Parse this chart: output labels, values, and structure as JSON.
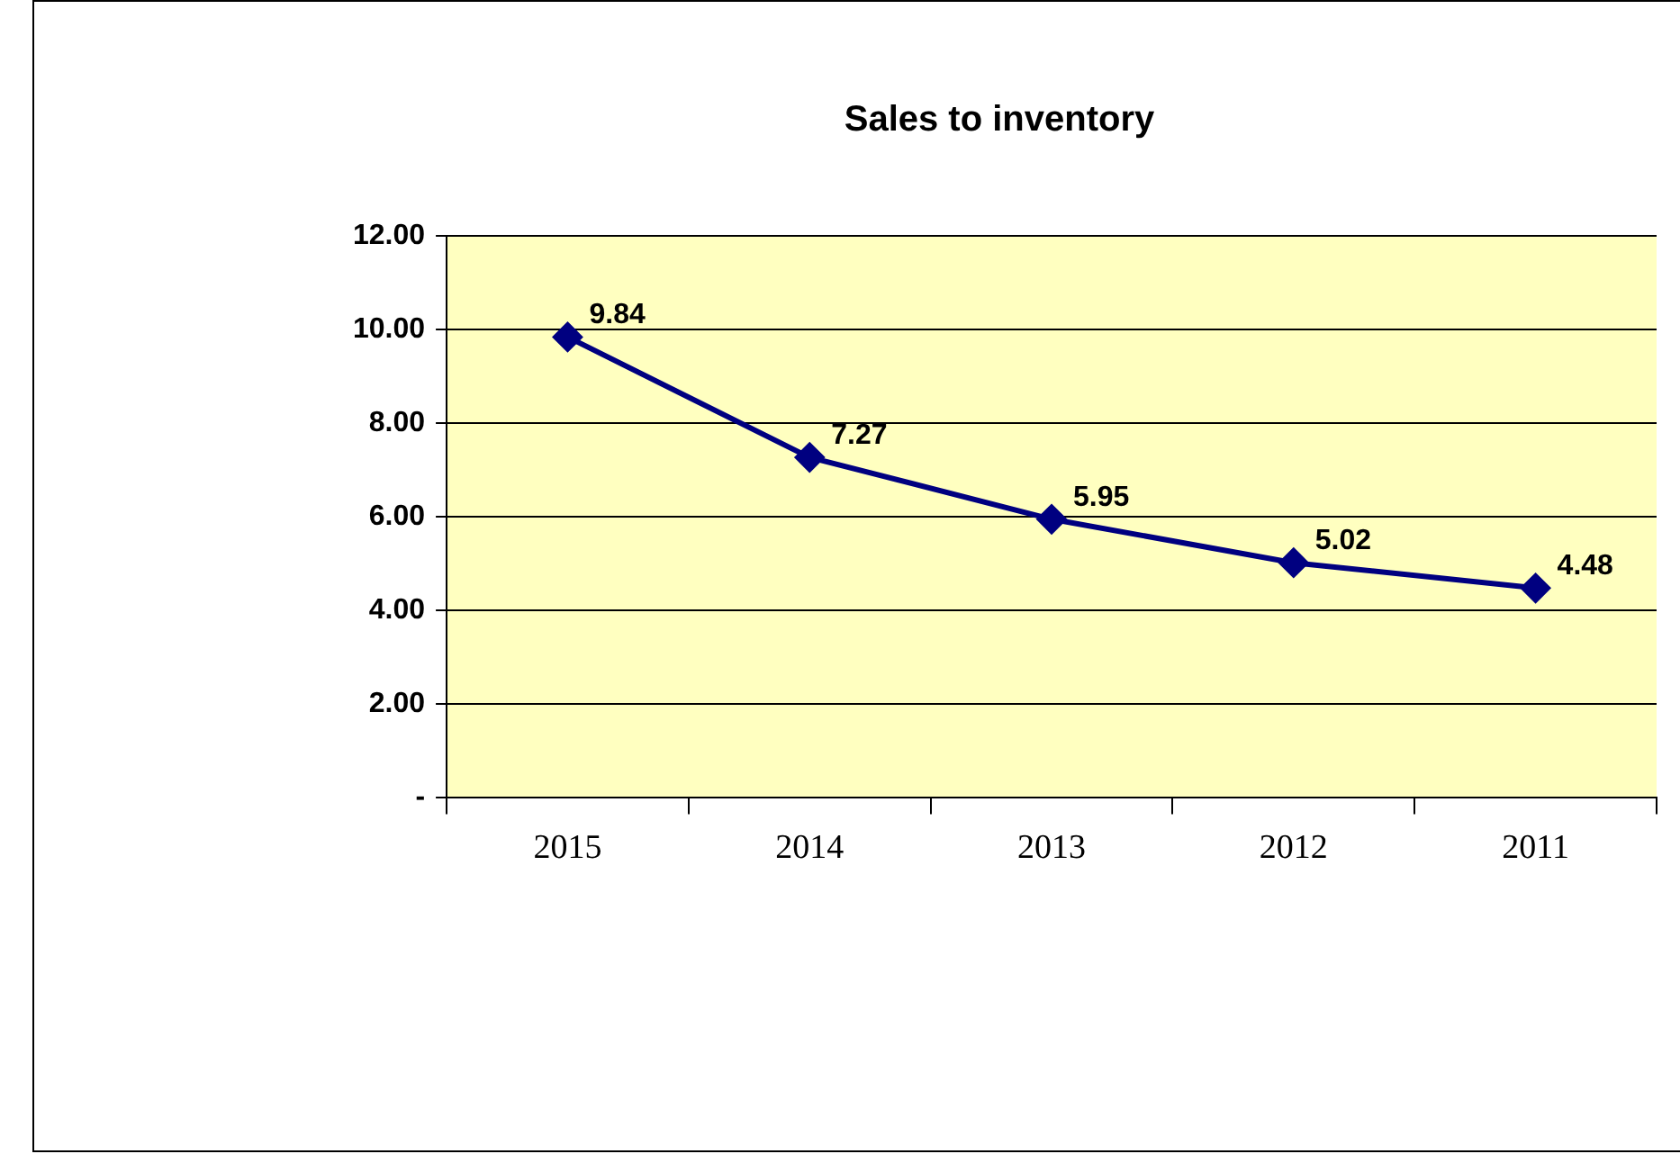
{
  "chart_data": {
    "type": "line",
    "title": "Sales to inventory",
    "categories": [
      "2015",
      "2014",
      "2013",
      "2012",
      "2011"
    ],
    "series": [
      {
        "color": "#000080",
        "values": [
          9.84,
          7.27,
          5.95,
          5.02,
          4.48
        ]
      }
    ],
    "ylim": [
      0,
      12
    ],
    "yticks": [
      {
        "value": 0,
        "label": "-"
      },
      {
        "value": 2,
        "label": "2.00"
      },
      {
        "value": 4,
        "label": "4.00"
      },
      {
        "value": 6,
        "label": "6.00"
      },
      {
        "value": 8,
        "label": "8.00"
      },
      {
        "value": 10,
        "label": "10.00"
      },
      {
        "value": 12,
        "label": "12.00"
      }
    ],
    "grid": "y",
    "legend": false,
    "marker": "diamond",
    "line_style": "solid",
    "data_labels": true
  }
}
